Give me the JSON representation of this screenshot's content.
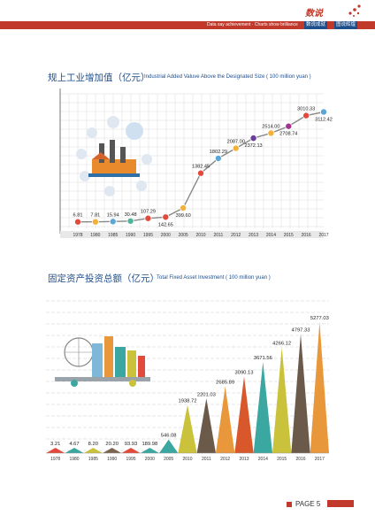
{
  "header": {
    "logo_text": "数说",
    "slogan": "Data say achievement · Charts show brilliance",
    "tags": [
      "数说成就",
      "图说辉煌"
    ]
  },
  "section1": {
    "title_cn": "规上工业增加值（亿元）",
    "title_en": "Industrial Added Valuve Above the Designated Size ( 100 million yuan )"
  },
  "section2": {
    "title_cn": "固定资产投资总额（亿元）",
    "title_en": "Total Fixed Asset Investment ( 100 million yuan )"
  },
  "footer": {
    "page_label": "PAGE 5"
  },
  "colors": {
    "brand_red": "#c0392b",
    "title_blue": "#1f4e8c",
    "grid": "#d6d6d6",
    "line": "#888888"
  },
  "chart_data": [
    {
      "type": "line",
      "categories": [
        "1978",
        "1980",
        "1985",
        "1990",
        "1995",
        "2000",
        "2005",
        "2010",
        "2011",
        "2012",
        "2013",
        "2014",
        "2015",
        "2016",
        "2017"
      ],
      "values": [
        6.81,
        7.81,
        15.94,
        30.48,
        107.29,
        142.65,
        399.6,
        1382.45,
        1802.29,
        2087.0,
        2372.13,
        2514.0,
        2708.74,
        3010.33,
        3112.42
      ],
      "labels": [
        "6.81",
        "7.81",
        "15.94",
        "30.48",
        "107.29",
        "142.65",
        "399.60",
        "1382.45",
        "1802.29",
        "2087.00",
        "2372.13",
        "2514.00",
        "2708.74",
        "3010.33",
        "3112.42"
      ],
      "title": "规上工业增加值（亿元）",
      "grid": true,
      "marker_colors": [
        "#e24b3b",
        "#f2b13b",
        "#5aa6d6",
        "#4bb49a",
        "#e24b3b",
        "#e24b3b",
        "#f2b13b",
        "#e24b3b",
        "#5aa6d6",
        "#f2b13b",
        "#6a3d9a",
        "#f2b13b",
        "#a2338f",
        "#e24b3b",
        "#5aa6d6"
      ]
    },
    {
      "type": "bar",
      "categories": [
        "1978",
        "1980",
        "1985",
        "1990",
        "1995",
        "2000",
        "2005",
        "2010",
        "2011",
        "2012",
        "2013",
        "2014",
        "2015",
        "2016",
        "2017"
      ],
      "values": [
        3.21,
        4.67,
        8.2,
        20.2,
        93.93,
        189.98,
        546.08,
        1938.72,
        2201.03,
        2685.89,
        3090.13,
        3671.56,
        4266.12,
        4797.33,
        5277.03
      ],
      "labels": [
        "3.21",
        "4.67",
        "8.20",
        "20.20",
        "93.93",
        "189.98",
        "546.08",
        "1938.72",
        "2201.03",
        "2685.89",
        "3090.13",
        "3671.56",
        "4266.12",
        "4797.33",
        "5277.03"
      ],
      "title": "固定资产投资总额（亿元）",
      "bar_shape": "triangle",
      "colors": [
        "#e24b3b",
        "#3aa7a0",
        "#c9c23a",
        "#7a6550",
        "#e24b3b",
        "#3aa7a0",
        "#3aa7a0",
        "#c9c23a",
        "#6b5a4a",
        "#e8983a",
        "#d9582b",
        "#3aa7a0",
        "#c9c23a",
        "#6b5a4a",
        "#e8983a"
      ]
    }
  ]
}
